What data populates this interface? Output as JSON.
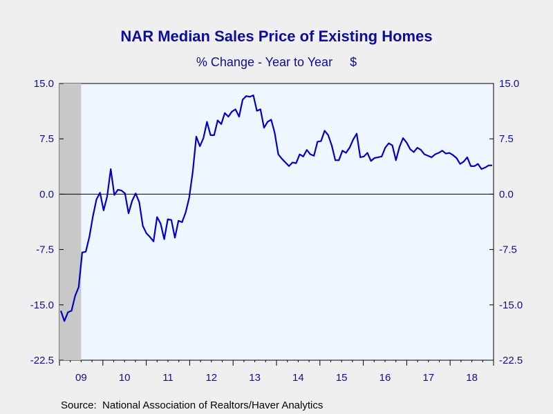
{
  "chart_data": {
    "type": "line",
    "title": "NAR Median Sales Price of Existing Homes",
    "subtitle": "% Change - Year to Year     $",
    "ylim": [
      -22.5,
      15.0
    ],
    "y_ticks": [
      "15.0",
      "7.5",
      "0.0",
      "-7.5",
      "-15.0",
      "-22.5"
    ],
    "y_tick_values": [
      15.0,
      7.5,
      0.0,
      -7.5,
      -15.0,
      -22.5
    ],
    "x_tick_labels": [
      "09",
      "10",
      "11",
      "12",
      "13",
      "14",
      "15",
      "16",
      "17",
      "18"
    ],
    "x_start_year": 2009,
    "x_end_year": 2019,
    "recession_shading": {
      "start": "2009-01",
      "end": "2009-06"
    },
    "zero_line": true,
    "grid": false,
    "source": "Source:  National Association of Realtors/Haver Analytics",
    "colors": {
      "line": "#0000c8",
      "plot_background": "#eef6ff",
      "recession": "#c8c8c8",
      "text": "#0d0d9c",
      "page_background": "#efefef"
    },
    "series": [
      {
        "name": "NAR Median Sales Price of Existing Homes",
        "values": [
          -15.8,
          -17.2,
          -16.0,
          -15.8,
          -13.8,
          -12.6,
          -7.9,
          -7.8,
          -5.8,
          -3.0,
          -0.7,
          0.2,
          -2.2,
          -0.3,
          3.4,
          -0.1,
          0.6,
          0.5,
          0.1,
          -2.6,
          -0.9,
          0.1,
          -1.1,
          -4.3,
          -5.3,
          -5.8,
          -6.4,
          -3.1,
          -4.0,
          -6.1,
          -3.4,
          -3.5,
          -5.9,
          -3.6,
          -3.8,
          -2.5,
          -0.5,
          3.0,
          7.8,
          6.5,
          7.6,
          9.8,
          8.0,
          8.0,
          10.0,
          9.5,
          11.0,
          10.5,
          11.2,
          11.5,
          10.5,
          12.8,
          13.3,
          13.2,
          13.4,
          11.3,
          11.5,
          9.0,
          9.8,
          10.1,
          8.3,
          5.4,
          4.8,
          4.3,
          3.8,
          4.3,
          4.2,
          5.4,
          5.1,
          6.0,
          5.4,
          5.2,
          7.1,
          7.2,
          8.6,
          8.0,
          6.6,
          4.6,
          4.6,
          5.9,
          5.6,
          6.3,
          7.4,
          8.2,
          5.0,
          5.1,
          5.6,
          4.5,
          4.9,
          5.0,
          5.1,
          6.3,
          6.9,
          6.6,
          4.6,
          6.4,
          7.6,
          7.0,
          6.1,
          5.7,
          6.3,
          6.0,
          5.4,
          5.2,
          5.0,
          5.4,
          5.6,
          5.9,
          5.5,
          5.6,
          5.3,
          4.9,
          4.1,
          4.4,
          5.0,
          3.8,
          3.8,
          4.1,
          3.4,
          3.6,
          3.9,
          3.9
        ]
      }
    ]
  }
}
